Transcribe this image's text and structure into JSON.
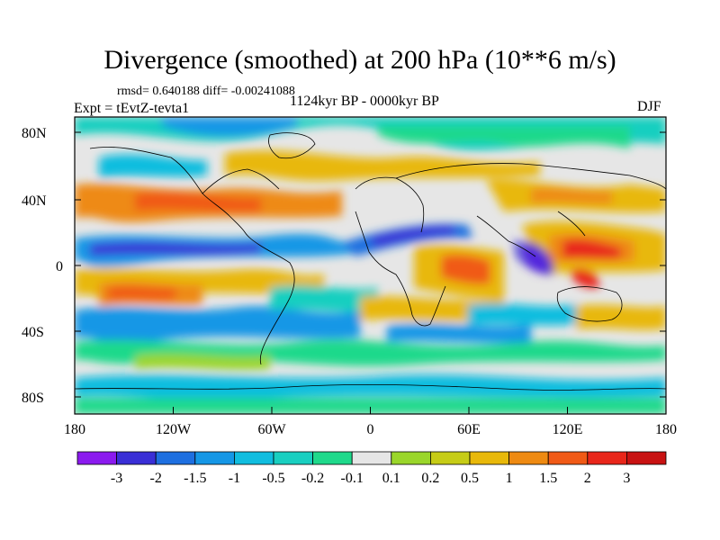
{
  "title": "Divergence (smoothed) at 200 hPa (10**6 m/s)",
  "stats_line": "rmsd= 0.640188 diff= -0.00241088",
  "experiment": "Expt = tEvtZ-tevta1",
  "period": "1124kyr BP - 0000kyr BP",
  "season": "DJF",
  "axes": {
    "x_ticks": [
      "180",
      "120W",
      "60W",
      "0",
      "60E",
      "120E",
      "180"
    ],
    "y_ticks": [
      "80N",
      "40N",
      "0",
      "40S",
      "80S"
    ]
  },
  "colorbar": {
    "labels": [
      "-3",
      "-2",
      "-1.5",
      "-1",
      "-0.5",
      "-0.2",
      "-0.1",
      "0.1",
      "0.2",
      "0.5",
      "1",
      "1.5",
      "2",
      "3"
    ],
    "colors": [
      "#8b1aee",
      "#3a2fd6",
      "#1e6fe0",
      "#1597e6",
      "#11bddf",
      "#19cfc0",
      "#1fd98b",
      "#e6e6e6",
      "#9ad62a",
      "#c6cc16",
      "#e8b80a",
      "#ee8a12",
      "#f05a16",
      "#e8261a",
      "#c81212"
    ]
  },
  "map": {
    "projection": "cylindrical equidistant",
    "lon_range": [
      -180,
      180
    ],
    "lat_range": [
      -90,
      90
    ],
    "variable": "200 hPa divergence difference"
  }
}
